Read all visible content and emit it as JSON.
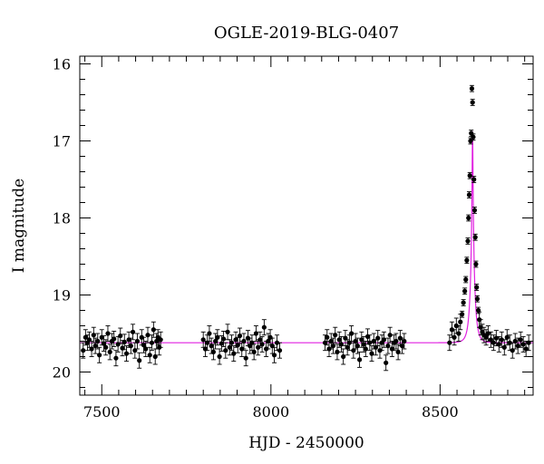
{
  "chart_data": {
    "type": "scatter",
    "title": "OGLE-2019-BLG-0407",
    "xlabel": "HJD - 2450000",
    "ylabel": "I magnitude",
    "xlim": [
      7435,
      8775
    ],
    "ylim": [
      20.3,
      15.9
    ],
    "y_inverted": true,
    "x_ticks": [
      7500,
      8000,
      8500
    ],
    "y_ticks": [
      16,
      17,
      18,
      19,
      20
    ],
    "grid": false,
    "colors": {
      "data": "#000000",
      "model": "#e020e0"
    },
    "model": {
      "name": "",
      "baseline_mag": 19.62,
      "t0": 8596,
      "tE": 12,
      "u0": 0.08
    },
    "series": [
      {
        "name": "",
        "x": [
          7445,
          7452,
          7458,
          7463,
          7470,
          7476,
          7481,
          7488,
          7493,
          7500,
          7506,
          7512,
          7518,
          7524,
          7530,
          7536,
          7542,
          7548,
          7555,
          7561,
          7567,
          7573,
          7580,
          7586,
          7592,
          7598,
          7605,
          7611,
          7618,
          7624,
          7630,
          7636,
          7642,
          7648,
          7653,
          7658,
          7662,
          7666,
          7670,
          7674,
          7800,
          7806,
          7812,
          7818,
          7824,
          7830,
          7836,
          7842,
          7848,
          7854,
          7860,
          7866,
          7872,
          7878,
          7884,
          7890,
          7896,
          7902,
          7908,
          7914,
          7920,
          7926,
          7932,
          7938,
          7944,
          7950,
          7956,
          7962,
          7968,
          7974,
          7980,
          7986,
          7992,
          7998,
          8004,
          8010,
          8018,
          8026,
          8160,
          8166,
          8172,
          8178,
          8184,
          8190,
          8196,
          8202,
          8208,
          8214,
          8220,
          8226,
          8232,
          8238,
          8244,
          8250,
          8256,
          8262,
          8268,
          8274,
          8280,
          8286,
          8292,
          8298,
          8304,
          8310,
          8316,
          8322,
          8328,
          8334,
          8340,
          8346,
          8352,
          8358,
          8364,
          8370,
          8376,
          8382,
          8388,
          8394,
          8528,
          8535,
          8542,
          8548,
          8555,
          8560,
          8565,
          8569,
          8573,
          8576,
          8579,
          8582,
          8584,
          8586,
          8588,
          8590,
          8592,
          8594,
          8596,
          8598,
          8600,
          8602,
          8604,
          8606,
          8608,
          8610,
          8613,
          8616,
          8620,
          8625,
          8630,
          8636,
          8642,
          8650,
          8658,
          8666,
          8674,
          8682,
          8690,
          8698,
          8706,
          8714,
          8722,
          8730,
          8738,
          8746,
          8754,
          8762
        ],
        "y": [
          19.72,
          19.55,
          19.62,
          19.58,
          19.7,
          19.52,
          19.66,
          19.6,
          19.78,
          19.55,
          19.63,
          19.68,
          19.5,
          19.74,
          19.6,
          19.57,
          19.82,
          19.64,
          19.53,
          19.69,
          19.61,
          19.76,
          19.58,
          19.66,
          19.48,
          19.72,
          19.6,
          19.85,
          19.55,
          19.65,
          19.7,
          19.52,
          19.78,
          19.62,
          19.45,
          19.8,
          19.6,
          19.55,
          19.68,
          19.58,
          19.58,
          19.7,
          19.62,
          19.5,
          19.66,
          19.74,
          19.6,
          19.55,
          19.8,
          19.63,
          19.57,
          19.72,
          19.48,
          19.68,
          19.62,
          19.76,
          19.58,
          19.65,
          19.53,
          19.7,
          19.6,
          19.82,
          19.56,
          19.66,
          19.62,
          19.74,
          19.5,
          19.68,
          19.58,
          19.64,
          19.42,
          19.7,
          19.6,
          19.55,
          19.66,
          19.78,
          19.62,
          19.72,
          19.62,
          19.55,
          19.7,
          19.6,
          19.66,
          19.52,
          19.74,
          19.58,
          19.64,
          19.8,
          19.56,
          19.68,
          19.62,
          19.5,
          19.72,
          19.6,
          19.66,
          19.84,
          19.58,
          19.64,
          19.7,
          19.54,
          19.62,
          19.76,
          19.6,
          19.68,
          19.56,
          19.72,
          19.62,
          19.58,
          19.88,
          19.66,
          19.52,
          19.7,
          19.62,
          19.6,
          19.74,
          19.56,
          19.66,
          19.6,
          19.62,
          19.45,
          19.55,
          19.4,
          19.5,
          19.35,
          19.25,
          19.1,
          18.95,
          18.8,
          18.55,
          18.3,
          18.0,
          17.7,
          17.45,
          17.0,
          16.9,
          16.32,
          16.5,
          16.95,
          17.5,
          17.9,
          18.25,
          18.6,
          18.9,
          19.05,
          19.2,
          19.32,
          19.42,
          19.48,
          19.52,
          19.55,
          19.5,
          19.58,
          19.62,
          19.56,
          19.64,
          19.58,
          19.68,
          19.55,
          19.62,
          19.72,
          19.6,
          19.66,
          19.58,
          19.64,
          19.7,
          19.62
        ]
      }
    ]
  }
}
